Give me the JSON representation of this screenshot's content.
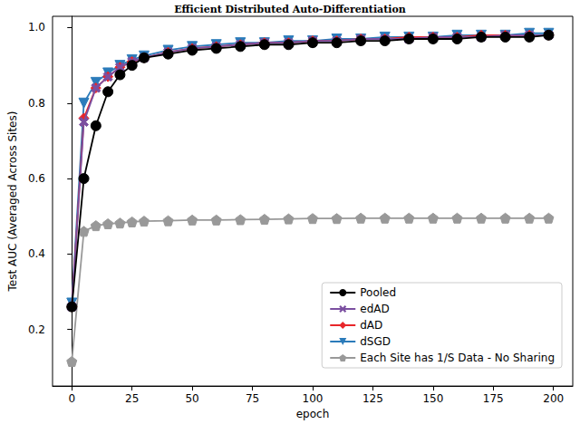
{
  "chart_data": {
    "type": "line",
    "title": "Efficient Distributed Auto-Differentiation",
    "x_label": "epoch",
    "y_label": "Test AUC (Averaged Across Sites)",
    "x": [
      0,
      5,
      10,
      15,
      20,
      25,
      30,
      40,
      50,
      60,
      70,
      80,
      90,
      100,
      110,
      120,
      130,
      140,
      150,
      160,
      170,
      180,
      190,
      198
    ],
    "series": [
      {
        "name": "Pooled",
        "color": "#000000",
        "marker": "circle",
        "line_style": "solid",
        "values": [
          0.26,
          0.6,
          0.74,
          0.83,
          0.875,
          0.9,
          0.92,
          0.93,
          0.94,
          0.945,
          0.95,
          0.955,
          0.955,
          0.96,
          0.96,
          0.965,
          0.965,
          0.97,
          0.97,
          0.97,
          0.975,
          0.975,
          0.975,
          0.98
        ]
      },
      {
        "name": "edAD",
        "color": "#7b4fa0",
        "marker": "x",
        "line_style": "solid",
        "values": [
          0.26,
          0.75,
          0.84,
          0.87,
          0.895,
          0.91,
          0.92,
          0.935,
          0.945,
          0.95,
          0.955,
          0.96,
          0.96,
          0.965,
          0.965,
          0.97,
          0.97,
          0.97,
          0.975,
          0.975,
          0.975,
          0.98,
          0.98,
          0.98
        ]
      },
      {
        "name": "dAD",
        "color": "#e8262a",
        "marker": "diamond",
        "line_style": "solid",
        "values": [
          0.26,
          0.76,
          0.84,
          0.87,
          0.895,
          0.91,
          0.92,
          0.935,
          0.945,
          0.95,
          0.955,
          0.96,
          0.96,
          0.965,
          0.965,
          0.97,
          0.97,
          0.975,
          0.975,
          0.975,
          0.98,
          0.98,
          0.98,
          0.98
        ]
      },
      {
        "name": "dSGD",
        "color": "#2b7bba",
        "marker": "triangle_down",
        "line_style": "solid",
        "values": [
          0.27,
          0.8,
          0.855,
          0.88,
          0.9,
          0.915,
          0.925,
          0.94,
          0.95,
          0.955,
          0.96,
          0.96,
          0.965,
          0.965,
          0.97,
          0.97,
          0.975,
          0.975,
          0.975,
          0.98,
          0.98,
          0.98,
          0.985,
          0.985
        ]
      },
      {
        "name": "Each Site has 1/S Data - No Sharing",
        "color": "#999999",
        "marker": "pentagon",
        "line_style": "solid",
        "values": [
          0.115,
          0.46,
          0.475,
          0.48,
          0.482,
          0.485,
          0.487,
          0.488,
          0.49,
          0.49,
          0.491,
          0.492,
          0.493,
          0.494,
          0.494,
          0.495,
          0.495,
          0.495,
          0.495,
          0.495,
          0.495,
          0.495,
          0.495,
          0.495
        ]
      }
    ],
    "xlim": [
      -8,
      208
    ],
    "xticks": [
      0,
      25,
      50,
      75,
      100,
      125,
      150,
      175,
      200
    ],
    "ylim": [
      0.05,
      1.03
    ],
    "yticks": [
      0.2,
      0.4,
      0.6,
      0.8,
      {
        "value": 1,
        "label": "1.0"
      }
    ],
    "grid": false,
    "legend": "lower right"
  }
}
